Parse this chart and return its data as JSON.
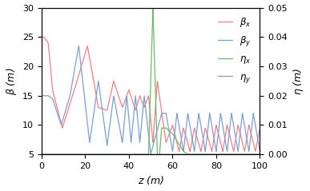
{
  "title": "",
  "xlabel": "z (m)",
  "ylabel_left": "β (m)",
  "ylabel_right": "η (m)",
  "xlim": [
    0,
    100
  ],
  "ylim_left": [
    5,
    30
  ],
  "ylim_right": [
    0,
    0.05
  ],
  "legend_labels": [
    "β_x",
    "β_y",
    "η_x",
    "η_y"
  ],
  "colors": [
    "#f08080",
    "#7b9fd4",
    "#6db86d",
    "#999999"
  ],
  "yticks_left": [
    5,
    10,
    15,
    20,
    25,
    30
  ],
  "yticks_right": [
    0,
    0.01,
    0.02,
    0.03,
    0.04,
    0.05
  ],
  "xticks": [
    0,
    20,
    40,
    60,
    80,
    100
  ],
  "figsize": [
    3.87,
    2.39
  ],
  "dpi": 100
}
